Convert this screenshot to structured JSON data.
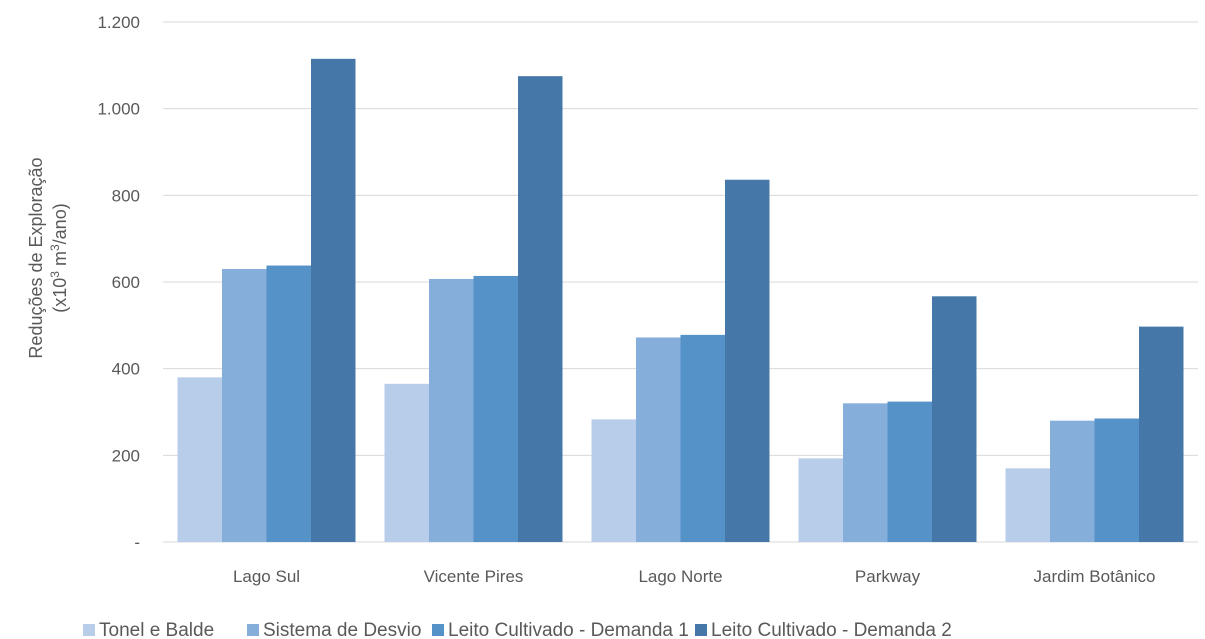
{
  "chart_data": {
    "type": "bar",
    "title": "",
    "xlabel": "",
    "ylabel_line1": "Reduções de Exploração",
    "ylabel_line2_prefix": "(x10",
    "ylabel_line2_sup1": "3",
    "ylabel_line2_mid": " m",
    "ylabel_line2_sup2": "3",
    "ylabel_line2_suffix": "/ano)",
    "ylim": [
      0,
      1200
    ],
    "yticks": [
      {
        "value": 0,
        "label": "-"
      },
      {
        "value": 200,
        "label": "200"
      },
      {
        "value": 400,
        "label": "400"
      },
      {
        "value": 600,
        "label": "600"
      },
      {
        "value": 800,
        "label": "800"
      },
      {
        "value": 1000,
        "label": "1.000"
      },
      {
        "value": 1200,
        "label": "1.200"
      }
    ],
    "grid": true,
    "legend_position": "bottom",
    "categories": [
      "Lago Sul",
      "Vicente Pires",
      "Lago Norte",
      "Parkway",
      "Jardim Botânico"
    ],
    "series": [
      {
        "name": "Tonel e Balde",
        "color": "#b8cde9",
        "values": [
          380,
          365,
          283,
          193,
          170
        ]
      },
      {
        "name": "Sistema de Desvio",
        "color": "#85aedb",
        "values": [
          630,
          607,
          472,
          320,
          280
        ]
      },
      {
        "name": "Leito Cultivado - Demanda 1",
        "color": "#5592c8",
        "values": [
          638,
          614,
          478,
          324,
          285
        ]
      },
      {
        "name": "Leito Cultivado - Demanda 2",
        "color": "#4578a9",
        "values": [
          1115,
          1075,
          836,
          567,
          497
        ]
      }
    ]
  }
}
